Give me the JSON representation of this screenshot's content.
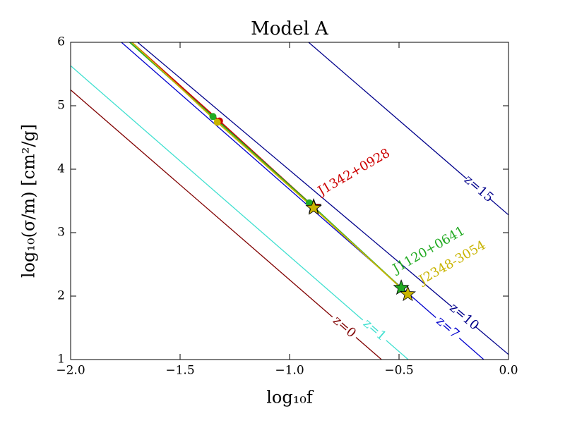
{
  "chart_data": {
    "type": "line",
    "title": "Model A",
    "x_label": "log₁₀f",
    "y_label": "log₁₀(σ/m) [cm²/g]",
    "xlim": [
      -2.0,
      0.0
    ],
    "ylim": [
      1,
      6
    ],
    "xticks": [
      {
        "value": -2.0,
        "label": "−2.0"
      },
      {
        "value": -1.5,
        "label": "−1.5"
      },
      {
        "value": -1.0,
        "label": "−1.0"
      },
      {
        "value": -0.5,
        "label": "−0.5"
      },
      {
        "value": 0.0,
        "label": "0.0"
      }
    ],
    "yticks": [
      1,
      2,
      3,
      4,
      5,
      6
    ],
    "contours": [
      {
        "name": "z=0",
        "color": "#800000",
        "x": [
          -2.0,
          -0.58
        ],
        "y": [
          5.25,
          1
        ]
      },
      {
        "name": "z=1",
        "color": "#40e0d0",
        "x": [
          -2.0,
          -0.458
        ],
        "y": [
          5.63,
          1
        ]
      },
      {
        "name": "z=7",
        "color": "#0000cd",
        "x": [
          -1.768,
          -0.113
        ],
        "y": [
          6,
          1
        ]
      },
      {
        "name": "z=10",
        "color": "#00008b",
        "x": [
          -1.694,
          0.0
        ],
        "y": [
          6,
          1.08
        ]
      },
      {
        "name": "z=15",
        "color": "#00008b",
        "x": [
          -0.913,
          0.0
        ],
        "y": [
          6,
          3.28
        ]
      }
    ],
    "series": [
      {
        "name": "J1342+0928",
        "color": "#cc0000",
        "x": [
          -1.72,
          -1.32,
          -0.89
        ],
        "values": [
          6,
          4.76,
          3.41
        ],
        "markers": [
          null,
          "circle",
          "star"
        ]
      },
      {
        "name": "J1120+0641",
        "color": "#22aa22",
        "x": [
          -1.73,
          -1.35,
          -0.91,
          -0.49
        ],
        "values": [
          6,
          4.83,
          3.47,
          2.13
        ],
        "markers": [
          null,
          "circle",
          "circle",
          "star"
        ]
      },
      {
        "name": "J2348-3054",
        "color": "#c8b400",
        "x": [
          -1.72,
          -1.33,
          -0.89,
          -0.46
        ],
        "values": [
          6,
          4.74,
          3.39,
          2.03
        ],
        "markers": [
          null,
          "circle",
          "star",
          "star"
        ]
      }
    ]
  }
}
